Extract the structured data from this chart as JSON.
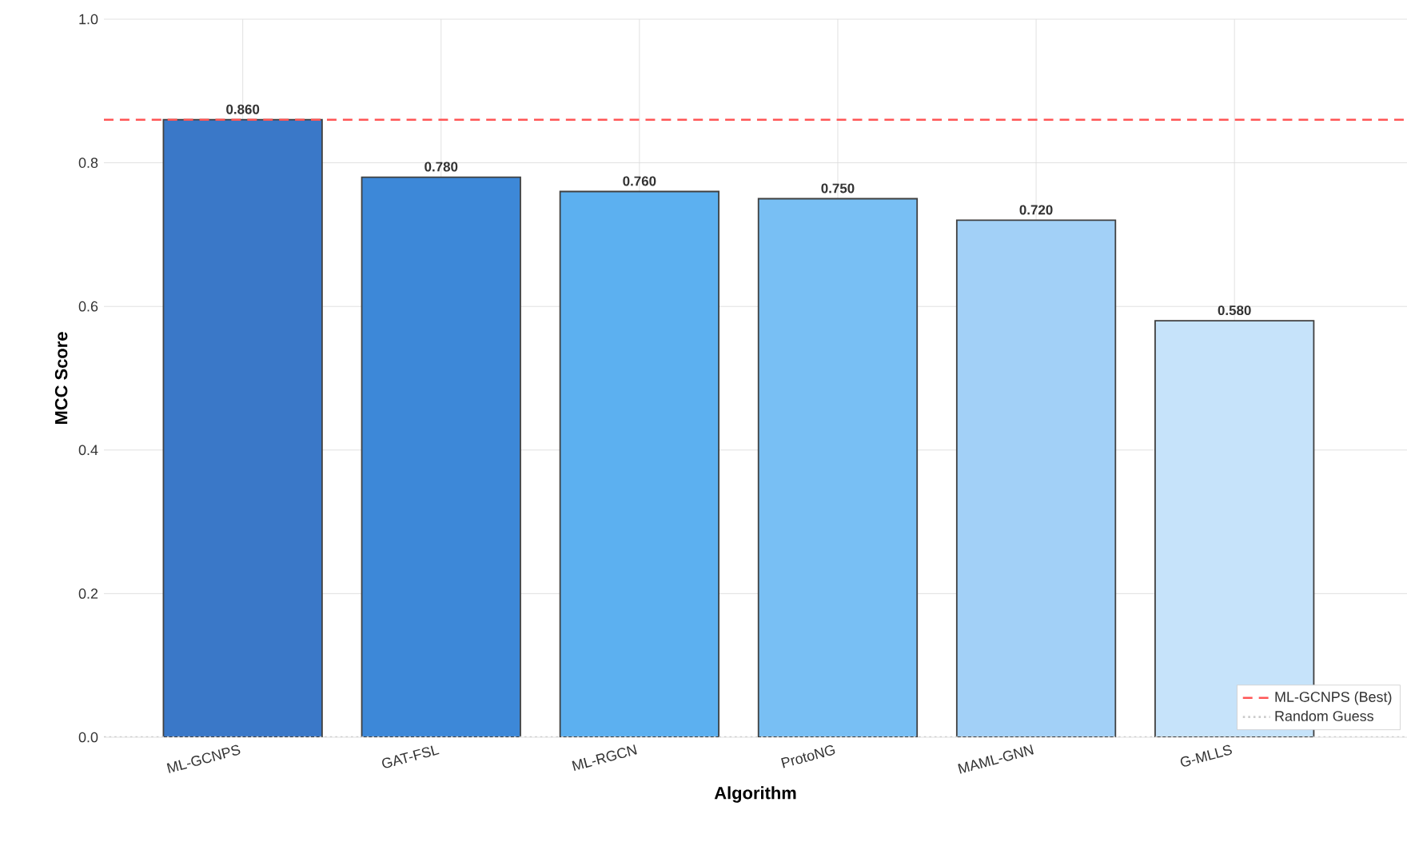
{
  "chart_data": {
    "type": "bar",
    "xlabel": "Algorithm",
    "ylabel": "MCC Score",
    "categories": [
      "ML-GCNPS",
      "GAT-FSL",
      "ML-RGCN",
      "ProtoNG",
      "MAML-GNN",
      "G-MLLS"
    ],
    "values": [
      0.86,
      0.78,
      0.76,
      0.75,
      0.72,
      0.58
    ],
    "colors": [
      "#3a78c8",
      "#3d88d8",
      "#5cb0f0",
      "#78bff4",
      "#a2d0f7",
      "#c6e3fa"
    ],
    "value_labels": [
      "0.860",
      "0.780",
      "0.760",
      "0.750",
      "0.720",
      "0.580"
    ],
    "ylim": [
      0,
      1
    ],
    "yticks": [
      {
        "value": 0,
        "label": "0.0"
      },
      {
        "value": 0.2,
        "label": "0.2"
      },
      {
        "value": 0.4,
        "label": "0.4"
      },
      {
        "value": 0.6,
        "label": "0.6"
      },
      {
        "value": 0.8,
        "label": "0.8"
      },
      {
        "value": 1,
        "label": "1.0"
      }
    ],
    "ref_lines": [
      {
        "axis": "y",
        "value": 0.86,
        "label": "ML-GCNPS (Best)",
        "color": "#ff5555",
        "line_style": "dashed"
      },
      {
        "axis": "y",
        "value": 0,
        "label": "Random Guess",
        "color": "#cccccc",
        "line_style": "dotted"
      }
    ],
    "grid": true,
    "legend": "bottom right"
  }
}
